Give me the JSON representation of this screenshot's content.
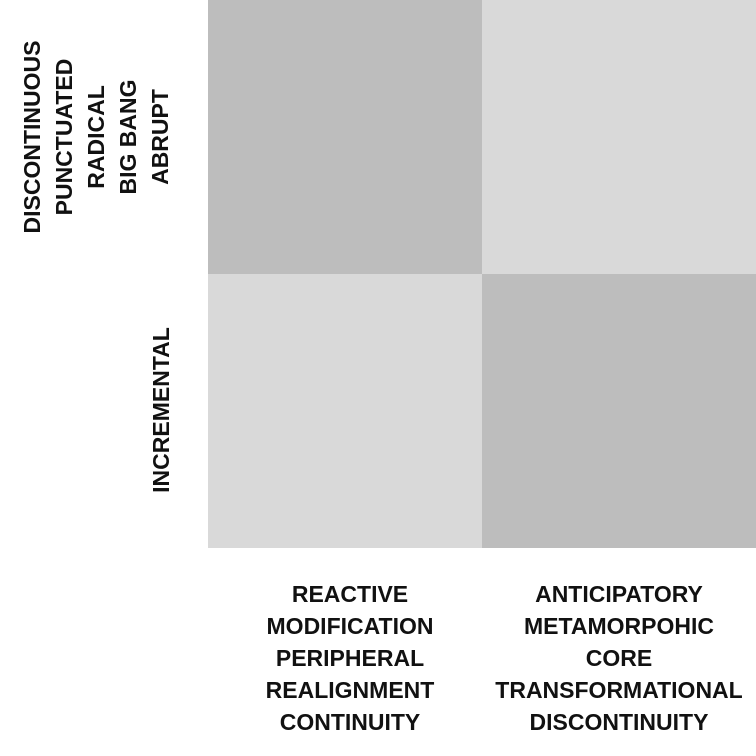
{
  "colors": {
    "dark_cell": "#bdbdbd",
    "light_cell": "#d9d9d9",
    "text": "#111111"
  },
  "matrix": {
    "cells": [
      {
        "position": "top-left",
        "shade": "dark"
      },
      {
        "position": "top-right",
        "shade": "light"
      },
      {
        "position": "bottom-left",
        "shade": "light"
      },
      {
        "position": "bottom-right",
        "shade": "dark"
      }
    ]
  },
  "y_axis": {
    "top_label_lines": [
      "DISCONTINUOUS",
      "PUNCTUATED",
      "RADICAL",
      "BIG BANG",
      "ABRUPT"
    ],
    "bottom_label": "INCREMENTAL"
  },
  "x_axis": {
    "left_label_lines": [
      "REACTIVE",
      "MODIFICATION",
      "PERIPHERAL",
      "REALIGNMENT",
      "CONTINUITY"
    ],
    "right_label_lines": [
      "ANTICIPATORY",
      "METAMORPOHIC",
      "CORE",
      "TRANSFORMATIONAL",
      "DISCONTINUITY"
    ]
  }
}
